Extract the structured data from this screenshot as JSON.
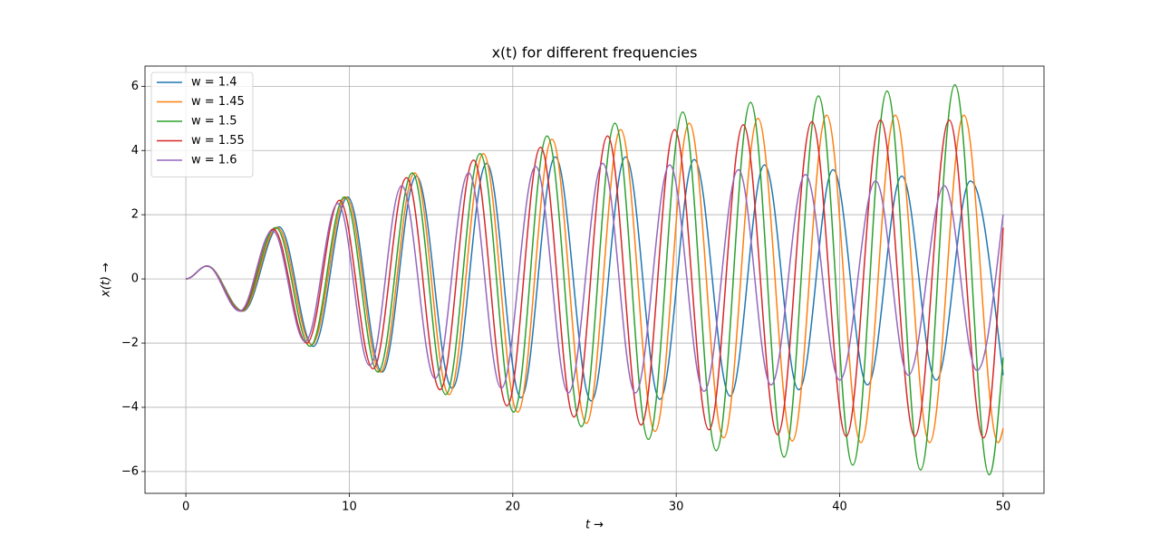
{
  "chart_data": {
    "type": "line",
    "title": "x(t) for different frequencies",
    "xlabel": "t →",
    "ylabel": "x(t) →",
    "xlim": [
      -2.5,
      52.5
    ],
    "ylim": [
      -6.68,
      6.63
    ],
    "xticks": [
      0,
      10,
      20,
      30,
      40,
      50
    ],
    "yticks": [
      {
        "value": -6,
        "label": "−6"
      },
      {
        "value": -4,
        "label": "−4"
      },
      {
        "value": -2,
        "label": "−2"
      },
      0,
      2,
      4,
      6
    ],
    "grid": true,
    "legend": "upper left",
    "series": [
      {
        "name": "w = 1.4",
        "color": "#1f77b4",
        "x": [
          0,
          1.3,
          3.5,
          5.7,
          7.8,
          9.9,
          12.0,
          14.1,
          16.3,
          18.4,
          20.5,
          22.6,
          24.8,
          26.9,
          29.0,
          31.1,
          33.3,
          35.4,
          37.5,
          39.6,
          41.7,
          43.8,
          45.9,
          48.0,
          50
        ],
        "values": [
          0,
          0.4,
          -1.0,
          1.62,
          -2.1,
          2.55,
          -2.9,
          3.2,
          -3.4,
          3.6,
          -3.7,
          3.8,
          -3.8,
          3.8,
          -3.75,
          3.72,
          -3.65,
          3.55,
          -3.45,
          3.4,
          -3.3,
          3.2,
          -3.15,
          3.05,
          -3.0
        ]
      },
      {
        "name": "w = 1.45",
        "color": "#ff7f0e",
        "x": [
          0,
          1.3,
          3.45,
          5.6,
          7.7,
          9.8,
          11.9,
          14.0,
          16.1,
          18.2,
          20.3,
          22.4,
          24.5,
          26.6,
          28.7,
          30.8,
          32.9,
          35.0,
          37.1,
          39.2,
          41.3,
          43.4,
          45.5,
          47.6,
          49.7,
          50
        ],
        "values": [
          0,
          0.4,
          -1.0,
          1.6,
          -2.05,
          2.55,
          -2.9,
          3.3,
          -3.6,
          3.9,
          -4.15,
          4.35,
          -4.5,
          4.65,
          -4.75,
          4.85,
          -4.95,
          5.0,
          -5.05,
          5.1,
          -5.1,
          5.1,
          -5.1,
          5.1,
          -5.1,
          -4.65
        ]
      },
      {
        "name": "w = 1.5",
        "color": "#2ca02c",
        "x": [
          0,
          1.3,
          3.4,
          5.5,
          7.6,
          9.7,
          11.75,
          13.85,
          15.9,
          18.0,
          20.05,
          22.1,
          24.2,
          26.25,
          28.3,
          30.4,
          32.45,
          34.55,
          36.6,
          38.7,
          40.8,
          42.9,
          44.95,
          47.05,
          49.15,
          50
        ],
        "values": [
          0,
          0.4,
          -1.0,
          1.6,
          -2.1,
          2.55,
          -2.9,
          3.3,
          -3.6,
          3.9,
          -4.15,
          4.45,
          -4.6,
          4.85,
          -5.0,
          5.2,
          -5.35,
          5.5,
          -5.55,
          5.7,
          -5.8,
          5.85,
          -5.95,
          6.05,
          -6.1,
          -2.45
        ]
      },
      {
        "name": "w = 1.55",
        "color": "#d62728",
        "x": [
          0,
          1.3,
          3.35,
          5.35,
          7.4,
          9.4,
          11.45,
          13.5,
          15.55,
          17.6,
          19.65,
          21.7,
          23.75,
          25.8,
          27.85,
          29.9,
          32.0,
          34.1,
          36.2,
          38.3,
          40.4,
          42.5,
          44.6,
          46.7,
          48.8,
          50
        ],
        "values": [
          0,
          0.4,
          -1.0,
          1.55,
          -2.0,
          2.45,
          -2.8,
          3.15,
          -3.45,
          3.7,
          -3.95,
          4.1,
          -4.3,
          4.45,
          -4.55,
          4.65,
          -4.7,
          4.8,
          -4.85,
          4.9,
          -4.9,
          4.95,
          -4.9,
          4.95,
          -4.95,
          1.6
        ]
      },
      {
        "name": "w = 1.6",
        "color": "#9467bd",
        "x": [
          0,
          1.3,
          3.3,
          5.3,
          7.3,
          9.3,
          11.25,
          13.2,
          15.25,
          17.3,
          19.3,
          21.4,
          23.4,
          25.5,
          27.5,
          29.6,
          31.7,
          33.8,
          35.8,
          37.9,
          40.0,
          42.2,
          44.2,
          46.4,
          48.4,
          50
        ],
        "values": [
          0,
          0.4,
          -1.0,
          1.5,
          -1.95,
          2.35,
          -2.7,
          2.9,
          -3.1,
          3.3,
          -3.4,
          3.5,
          -3.55,
          3.6,
          -3.55,
          3.55,
          -3.5,
          3.4,
          -3.3,
          3.25,
          -3.15,
          3.05,
          -3.0,
          2.9,
          -2.85,
          2.0
        ]
      }
    ]
  }
}
